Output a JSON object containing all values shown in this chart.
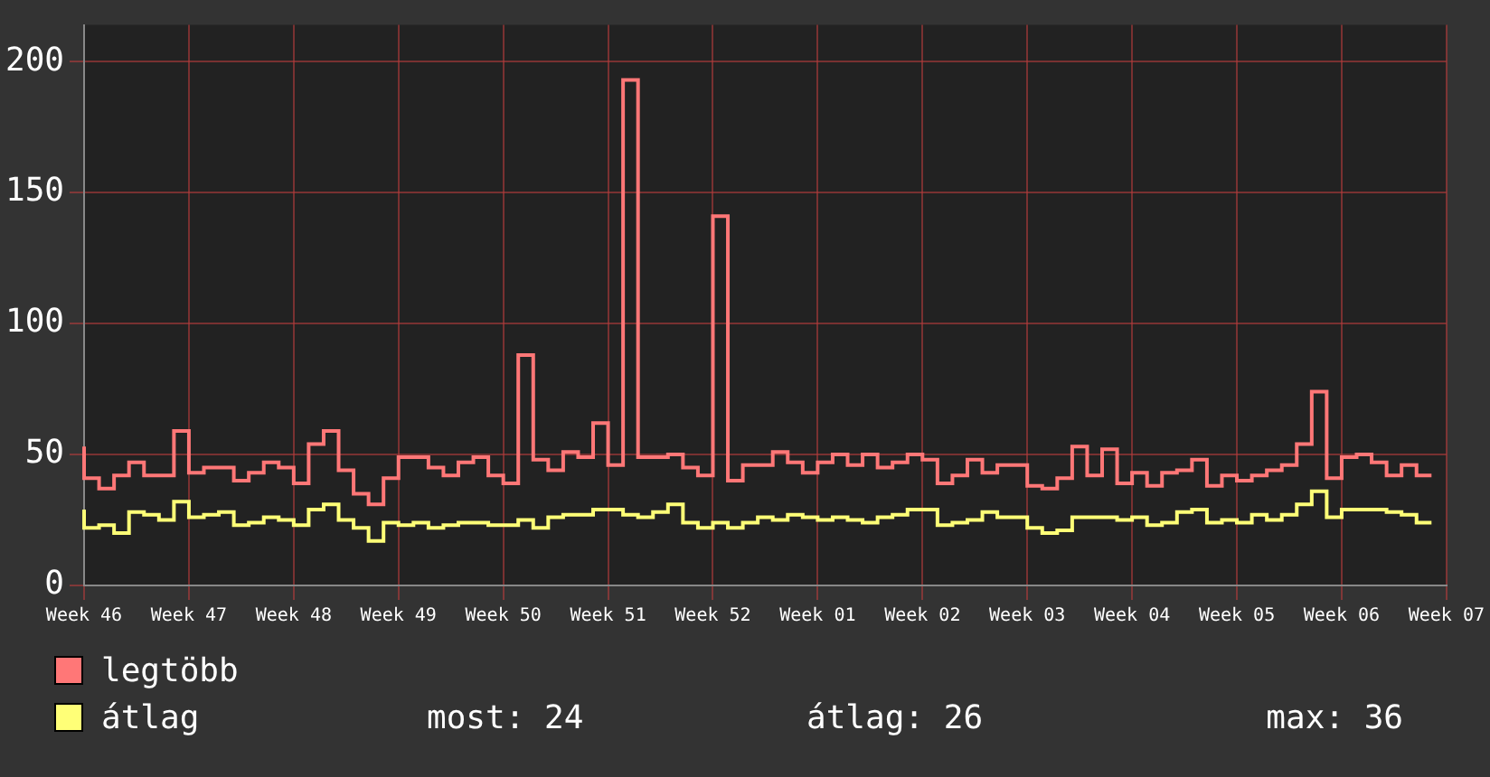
{
  "chart_data": {
    "type": "step",
    "categories": [
      "Week 46",
      null,
      null,
      null,
      null,
      null,
      null,
      "Week 47",
      null,
      null,
      null,
      null,
      null,
      null,
      "Week 48",
      null,
      null,
      null,
      null,
      null,
      null,
      "Week 49",
      null,
      null,
      null,
      null,
      null,
      null,
      "Week 50",
      null,
      null,
      null,
      null,
      null,
      null,
      "Week 51",
      null,
      null,
      null,
      null,
      null,
      null,
      "Week 52",
      null,
      null,
      null,
      null,
      null,
      null,
      "Week 01",
      null,
      null,
      null,
      null,
      null,
      null,
      "Week 02",
      null,
      null,
      null,
      null,
      null,
      null,
      "Week 03",
      null,
      null,
      null,
      null,
      null,
      null,
      "Week 04",
      null,
      null,
      null,
      null,
      null,
      null,
      "Week 05",
      null,
      null,
      null,
      null,
      null,
      null,
      "Week 06",
      null,
      null,
      null,
      null,
      null,
      null,
      "Week 07"
    ],
    "series": [
      {
        "name": "legtöbb",
        "color": "#ff7777",
        "values": [
          53,
          41,
          37,
          42,
          47,
          42,
          42,
          59,
          43,
          45,
          45,
          40,
          43,
          47,
          45,
          39,
          54,
          59,
          44,
          35,
          31,
          41,
          49,
          49,
          45,
          42,
          47,
          49,
          42,
          39,
          88,
          48,
          44,
          51,
          49,
          62,
          46,
          193,
          49,
          49,
          50,
          45,
          42,
          141,
          40,
          46,
          46,
          51,
          47,
          43,
          47,
          50,
          46,
          50,
          45,
          47,
          50,
          48,
          39,
          42,
          48,
          43,
          46,
          46,
          38,
          37,
          41,
          53,
          42,
          52,
          39,
          43,
          38,
          43,
          44,
          48,
          38,
          42,
          40,
          42,
          44,
          46,
          54,
          74,
          41,
          49,
          50,
          47,
          42,
          46,
          42,
          null
        ]
      },
      {
        "name": "átlag",
        "color": "#ffff77",
        "values": [
          29,
          22,
          23,
          20,
          28,
          27,
          25,
          32,
          26,
          27,
          28,
          23,
          24,
          26,
          25,
          23,
          29,
          31,
          25,
          22,
          17,
          24,
          23,
          24,
          22,
          23,
          24,
          24,
          23,
          23,
          25,
          22,
          26,
          27,
          27,
          29,
          29,
          27,
          26,
          28,
          31,
          24,
          22,
          24,
          22,
          24,
          26,
          25,
          27,
          26,
          25,
          26,
          25,
          24,
          26,
          27,
          29,
          29,
          23,
          24,
          25,
          28,
          26,
          26,
          22,
          20,
          21,
          26,
          26,
          26,
          25,
          26,
          23,
          24,
          28,
          29,
          24,
          25,
          24,
          27,
          25,
          27,
          31,
          36,
          26,
          29,
          29,
          29,
          28,
          27,
          24,
          null
        ]
      }
    ],
    "ylim": [
      0,
      214
    ],
    "yticks": [
      0,
      50,
      100,
      150,
      200
    ],
    "grid": true,
    "legend": "bottom left",
    "annotations": [
      "most: 24",
      "átlag: 26",
      "max: 36"
    ]
  }
}
